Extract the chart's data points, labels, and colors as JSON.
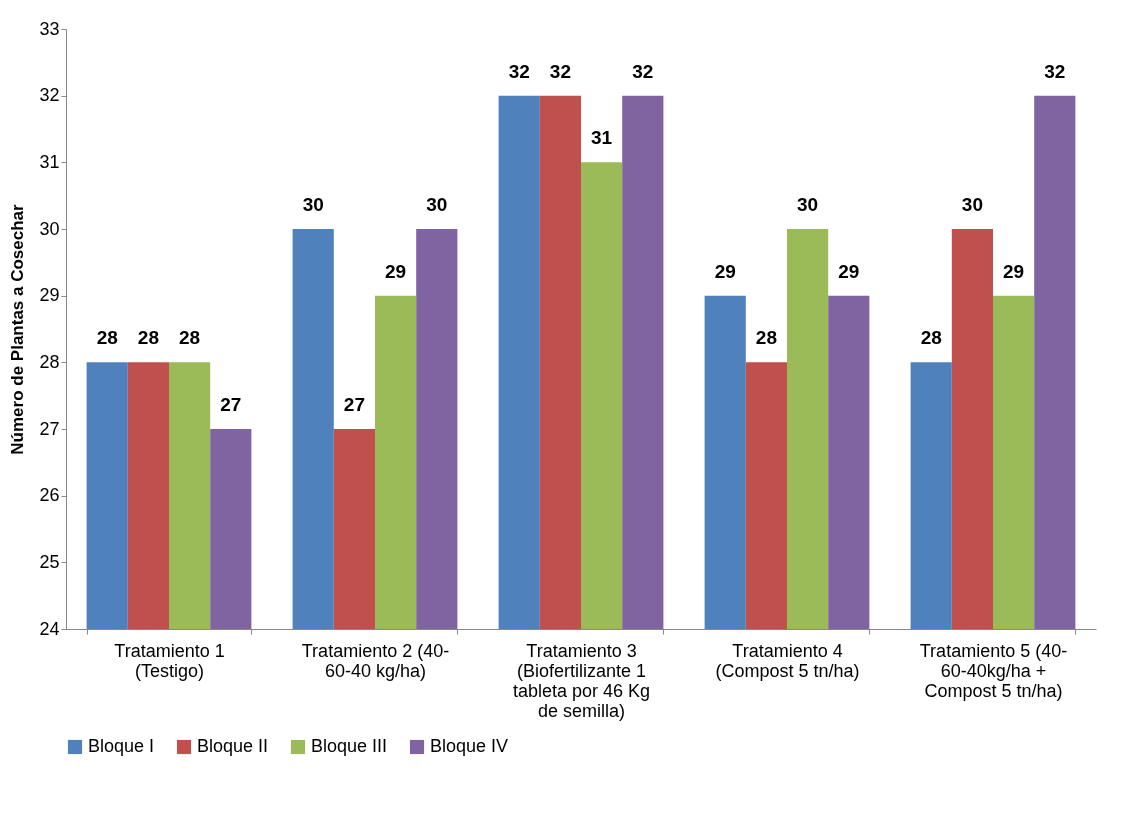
{
  "chart_data": {
    "type": "bar",
    "ylabel": "Número de Plantas a Cosechar",
    "categories": [
      "Tratamiento 1 (Testigo)",
      "Tratamiento 2 (40-60-40 kg/ha)",
      "Tratamiento 3 (Biofertilizante 1 tableta por 46 Kg de semilla)",
      "Tratamiento 4 (Compost 5 tn/ha)",
      "Tratamiento 5 (40-60-40kg/ha + Compost 5 tn/ha)"
    ],
    "series": [
      {
        "name": "Bloque I",
        "color": "#4f81bd",
        "values": [
          28,
          30,
          32,
          29,
          28
        ]
      },
      {
        "name": "Bloque II",
        "color": "#c0504d",
        "values": [
          28,
          27,
          32,
          28,
          30
        ]
      },
      {
        "name": "Bloque III",
        "color": "#9bbb59",
        "values": [
          28,
          29,
          31,
          30,
          29
        ]
      },
      {
        "name": "Bloque IV",
        "color": "#8064a2",
        "values": [
          27,
          30,
          32,
          29,
          32
        ]
      }
    ],
    "ylim": [
      24,
      33
    ],
    "yticks": [
      24,
      25,
      26,
      27,
      28,
      29,
      30,
      31,
      32,
      33
    ],
    "grid": false,
    "legend": "bottom",
    "data_labels": true
  }
}
